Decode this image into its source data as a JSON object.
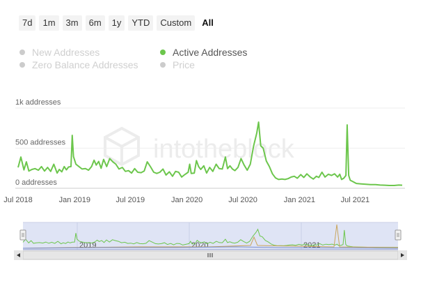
{
  "range_buttons": [
    "7d",
    "1m",
    "3m",
    "6m",
    "1y",
    "YTD",
    "Custom",
    "All"
  ],
  "active_range": "All",
  "legend": [
    {
      "label": "New Addresses",
      "active": false
    },
    {
      "label": "Active Addresses",
      "active": true
    },
    {
      "label": "Zero Balance Addresses",
      "active": false
    },
    {
      "label": "Price",
      "active": false
    }
  ],
  "watermark": "intotheblock",
  "navigator": {
    "year_labels": [
      "2019",
      "2020",
      "2021"
    ],
    "scroll_left_icon": "arrow-left-icon",
    "scroll_right_icon": "arrow-right-icon",
    "grip_icon": "grip-icon"
  },
  "colors": {
    "series": "#6cc64c",
    "navigator_fill": "#dfe4f5",
    "navigator_border": "#8896c8"
  },
  "chart_data": {
    "type": "line",
    "series": [
      {
        "name": "Active Addresses",
        "points": [
          [
            "2018-07-01",
            260
          ],
          [
            "2018-07-10",
            390
          ],
          [
            "2018-07-20",
            230
          ],
          [
            "2018-07-28",
            330
          ],
          [
            "2018-08-05",
            215
          ],
          [
            "2018-08-15",
            235
          ],
          [
            "2018-08-25",
            245
          ],
          [
            "2018-09-05",
            225
          ],
          [
            "2018-09-15",
            270
          ],
          [
            "2018-09-25",
            215
          ],
          [
            "2018-10-05",
            260
          ],
          [
            "2018-10-15",
            210
          ],
          [
            "2018-10-25",
            300
          ],
          [
            "2018-11-05",
            190
          ],
          [
            "2018-11-12",
            235
          ],
          [
            "2018-11-20",
            205
          ],
          [
            "2018-11-28",
            270
          ],
          [
            "2018-12-05",
            230
          ],
          [
            "2018-12-12",
            265
          ],
          [
            "2018-12-20",
            270
          ],
          [
            "2018-12-24",
            660
          ],
          [
            "2018-12-28",
            395
          ],
          [
            "2019-01-05",
            300
          ],
          [
            "2019-01-15",
            270
          ],
          [
            "2019-01-25",
            240
          ],
          [
            "2019-02-05",
            245
          ],
          [
            "2019-02-15",
            225
          ],
          [
            "2019-02-25",
            270
          ],
          [
            "2019-03-05",
            350
          ],
          [
            "2019-03-12",
            290
          ],
          [
            "2019-03-20",
            335
          ],
          [
            "2019-03-28",
            250
          ],
          [
            "2019-04-05",
            360
          ],
          [
            "2019-04-15",
            270
          ],
          [
            "2019-04-25",
            370
          ],
          [
            "2019-05-05",
            330
          ],
          [
            "2019-05-15",
            300
          ],
          [
            "2019-05-25",
            240
          ],
          [
            "2019-06-05",
            260
          ],
          [
            "2019-06-15",
            210
          ],
          [
            "2019-06-25",
            220
          ],
          [
            "2019-07-05",
            190
          ],
          [
            "2019-07-15",
            245
          ],
          [
            "2019-07-25",
            200
          ],
          [
            "2019-08-05",
            195
          ],
          [
            "2019-08-15",
            215
          ],
          [
            "2019-08-25",
            330
          ],
          [
            "2019-09-05",
            265
          ],
          [
            "2019-09-15",
            200
          ],
          [
            "2019-09-25",
            185
          ],
          [
            "2019-10-05",
            200
          ],
          [
            "2019-10-15",
            240
          ],
          [
            "2019-10-25",
            165
          ],
          [
            "2019-11-05",
            205
          ],
          [
            "2019-11-15",
            150
          ],
          [
            "2019-11-25",
            210
          ],
          [
            "2019-12-05",
            200
          ],
          [
            "2019-12-15",
            140
          ],
          [
            "2019-12-25",
            170
          ],
          [
            "2020-01-05",
            200
          ],
          [
            "2020-01-10",
            300
          ],
          [
            "2020-01-15",
            185
          ],
          [
            "2020-01-25",
            190
          ],
          [
            "2020-02-01",
            345
          ],
          [
            "2020-02-08",
            270
          ],
          [
            "2020-02-15",
            235
          ],
          [
            "2020-02-25",
            280
          ],
          [
            "2020-03-05",
            190
          ],
          [
            "2020-03-15",
            260
          ],
          [
            "2020-03-25",
            210
          ],
          [
            "2020-04-05",
            300
          ],
          [
            "2020-04-15",
            245
          ],
          [
            "2020-04-25",
            240
          ],
          [
            "2020-05-05",
            390
          ],
          [
            "2020-05-12",
            245
          ],
          [
            "2020-05-20",
            280
          ],
          [
            "2020-05-28",
            240
          ],
          [
            "2020-06-05",
            220
          ],
          [
            "2020-06-15",
            260
          ],
          [
            "2020-06-25",
            370
          ],
          [
            "2020-07-05",
            290
          ],
          [
            "2020-07-15",
            225
          ],
          [
            "2020-07-25",
            300
          ],
          [
            "2020-08-05",
            530
          ],
          [
            "2020-08-15",
            690
          ],
          [
            "2020-08-21",
            825
          ],
          [
            "2020-08-28",
            530
          ],
          [
            "2020-09-05",
            500
          ],
          [
            "2020-09-15",
            340
          ],
          [
            "2020-09-25",
            270
          ],
          [
            "2020-10-05",
            180
          ],
          [
            "2020-10-15",
            130
          ],
          [
            "2020-10-25",
            110
          ],
          [
            "2020-11-05",
            115
          ],
          [
            "2020-11-15",
            110
          ],
          [
            "2020-11-25",
            120
          ],
          [
            "2020-12-05",
            140
          ],
          [
            "2020-12-15",
            150
          ],
          [
            "2020-12-25",
            125
          ],
          [
            "2021-01-05",
            170
          ],
          [
            "2021-01-15",
            135
          ],
          [
            "2021-01-25",
            180
          ],
          [
            "2021-02-05",
            140
          ],
          [
            "2021-02-15",
            115
          ],
          [
            "2021-02-25",
            150
          ],
          [
            "2021-03-05",
            135
          ],
          [
            "2021-03-15",
            200
          ],
          [
            "2021-03-25",
            140
          ],
          [
            "2021-04-05",
            175
          ],
          [
            "2021-04-15",
            160
          ],
          [
            "2021-04-25",
            180
          ],
          [
            "2021-05-05",
            140
          ],
          [
            "2021-05-12",
            175
          ],
          [
            "2021-05-18",
            110
          ],
          [
            "2021-05-25",
            125
          ],
          [
            "2021-06-01",
            160
          ],
          [
            "2021-06-05",
            790
          ],
          [
            "2021-06-10",
            160
          ],
          [
            "2021-06-15",
            100
          ],
          [
            "2021-06-25",
            80
          ],
          [
            "2021-07-05",
            60
          ],
          [
            "2021-07-20",
            55
          ],
          [
            "2021-08-05",
            50
          ],
          [
            "2021-08-20",
            45
          ],
          [
            "2021-09-05",
            45
          ],
          [
            "2021-09-20",
            40
          ],
          [
            "2021-10-05",
            38
          ],
          [
            "2021-10-20",
            35
          ],
          [
            "2021-11-05",
            35
          ],
          [
            "2021-11-20",
            40
          ],
          [
            "2021-12-01",
            38
          ]
        ]
      }
    ],
    "y_ticks": [
      {
        "value": 0,
        "label": "0 addresses"
      },
      {
        "value": 500,
        "label": "500 addresses"
      },
      {
        "value": 1000,
        "label": "1k addresses"
      }
    ],
    "x_ticks": [
      {
        "date": "2018-07-01",
        "label": "Jul 2018"
      },
      {
        "date": "2019-01-01",
        "label": "Jan 2019"
      },
      {
        "date": "2019-07-01",
        "label": "Jul 2019"
      },
      {
        "date": "2020-01-01",
        "label": "Jan 2020"
      },
      {
        "date": "2020-07-01",
        "label": "Jul 2020"
      },
      {
        "date": "2021-01-01",
        "label": "Jan 2021"
      },
      {
        "date": "2021-07-01",
        "label": "Jul 2021"
      }
    ],
    "xlim": [
      "2018-07-01",
      "2021-12-01"
    ],
    "ylim": [
      0,
      1000
    ],
    "grid": true
  }
}
